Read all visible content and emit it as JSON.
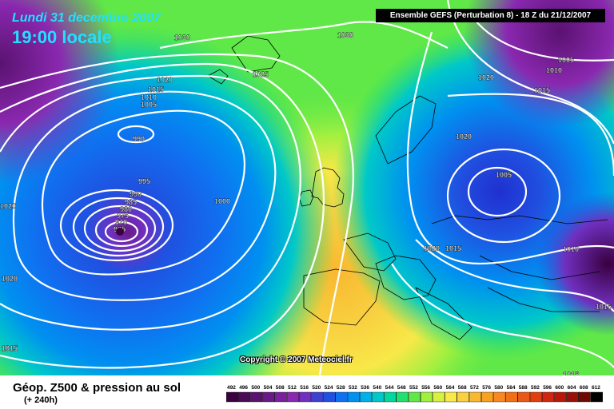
{
  "header": {
    "date": "Lundi 31 decembre 2007",
    "time": "19:00 locale",
    "model": "Ensemble GEFS (Perturbation 8)  - 18 Z du 21/12/2007"
  },
  "copyright": "Copyright © 2007 Meteociel.fr",
  "footer": {
    "title": "Géop. Z500 & pression au sol",
    "subtitle": "(+ 240h)"
  },
  "legend": {
    "values": [
      "492",
      "496",
      "500",
      "504",
      "508",
      "512",
      "516",
      "520",
      "524",
      "528",
      "532",
      "536",
      "540",
      "544",
      "548",
      "552",
      "556",
      "560",
      "564",
      "568",
      "572",
      "576",
      "580",
      "584",
      "588",
      "592",
      "596",
      "600",
      "604",
      "608",
      "612"
    ],
    "colors": [
      "#3a0040",
      "#4a0a55",
      "#5a1270",
      "#6a1a88",
      "#7a209e",
      "#8a28b0",
      "#7030c0",
      "#4040d0",
      "#2050e0",
      "#1070f0",
      "#0090f0",
      "#00b0e8",
      "#00c8c8",
      "#00d8a0",
      "#20e070",
      "#60e848",
      "#a0f040",
      "#d8f040",
      "#f8e848",
      "#f8d040",
      "#f8b830",
      "#f8a020",
      "#f88820",
      "#f07018",
      "#e85818",
      "#e04010",
      "#d02810",
      "#b81808",
      "#981008",
      "#700800",
      "#000000"
    ]
  },
  "isobars": [
    "1030",
    "1030",
    "1025",
    "1020",
    "1015",
    "1010",
    "1005",
    "990",
    "995",
    "990",
    "985",
    "980",
    "975",
    "970",
    "965",
    "1000",
    "1020",
    "1020",
    "1015",
    "1005",
    "1010",
    "1020",
    "1005",
    "1010",
    "1015",
    "1020",
    "1015",
    "1015",
    "1020",
    "1015",
    "1010",
    "1015",
    "1015"
  ],
  "map_colors": {
    "deep_low": "#3a0040",
    "purple": "#8a28b0",
    "blue": "#1070f0",
    "cyan": "#00c8c8",
    "green": "#60e848",
    "yellow": "#f8e848",
    "orange": "#f8b830"
  }
}
